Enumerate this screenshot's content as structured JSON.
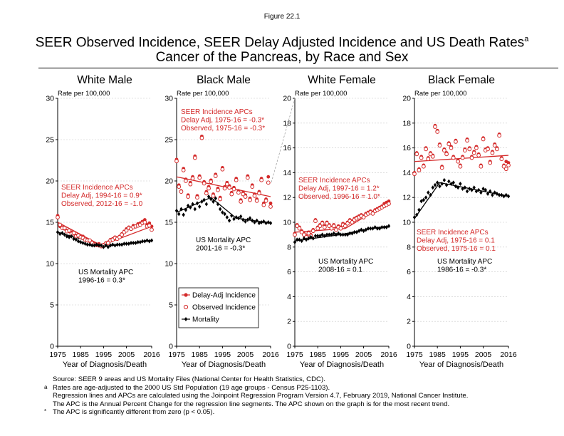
{
  "figure_label": "Figure 22.1",
  "title_line1": "SEER Observed Incidence, SEER Delay Adjusted Incidence and US Death Rates",
  "title_sup": "a",
  "title_line2": "Cancer of the Pancreas, by Race and Sex",
  "colors": {
    "incidence": "#d42a2a",
    "mortality": "#000000",
    "grid": "#c8c8c8"
  },
  "legend": {
    "delay_adj": "Delay-Adj Incidence",
    "observed": "Observed Incidence",
    "mortality": "Mortality"
  },
  "footnotes": [
    {
      "mark": "",
      "text": "Source: SEER 9 areas and US Mortality Files (National Center for Health Statistics, CDC)."
    },
    {
      "mark": "a",
      "text": "Rates are age-adjusted to the 2000 US Std Population (19 age groups - Census P25-1103)."
    },
    {
      "mark": "",
      "text": "Regression lines and APCs are calculated using the Joinpoint Regression Program Version 4.7, February 2019, National Cancer Institute."
    },
    {
      "mark": "",
      "text": "The APC is the Annual Percent Change for the regression line segments. The APC shown on the graph is for the most recent trend."
    },
    {
      "mark": "*",
      "text": "The APC is significantly different from zero (p < 0.05)."
    }
  ],
  "chart_data": [
    {
      "type": "scatter",
      "title": "White Male",
      "ylabel": "Rate per 100,000",
      "xlabel": "Year of Diagnosis/Death",
      "xlim": [
        1975,
        2016
      ],
      "ylim": [
        0,
        30
      ],
      "yticks": [
        0,
        5,
        10,
        15,
        20,
        25,
        30
      ],
      "xticks": [
        1975,
        1985,
        1995,
        2005,
        2016
      ],
      "grid": true,
      "incidence_apc": [
        "SEER Incidence APCs",
        "Delay Adj, 1994-16 = 0.9*",
        "Observed, 2012-16 = -1.0"
      ],
      "mortality_apc": [
        "US Mortality APC",
        "1996-16 = 0.3*"
      ],
      "series": [
        {
          "name": "Delay-Adj Incidence",
          "y": [
            15.8,
            14.5,
            14.4,
            14.2,
            14.0,
            13.9,
            13.8,
            13.6,
            13.4,
            13.5,
            13.2,
            13.3,
            12.9,
            12.9,
            12.7,
            12.6,
            12.4,
            12.2,
            12.4,
            12.1,
            12.3,
            12.5,
            12.6,
            12.9,
            13.0,
            13.2,
            13.1,
            13.3,
            13.6,
            13.9,
            14.2,
            14.4,
            14.3,
            14.6,
            14.5,
            14.8,
            14.9,
            15.1,
            15.3,
            14.7,
            14.9,
            14.5
          ]
        },
        {
          "name": "Observed Incidence",
          "y": [
            15.6,
            14.7,
            14.3,
            14.3,
            13.9,
            14.0,
            13.6,
            13.7,
            13.3,
            13.4,
            13.2,
            13.1,
            12.9,
            12.8,
            12.8,
            12.5,
            12.3,
            12.3,
            12.2,
            12.1,
            12.2,
            12.4,
            12.5,
            12.8,
            12.9,
            13.1,
            13.0,
            13.2,
            13.5,
            13.8,
            14.0,
            14.3,
            14.2,
            14.4,
            14.5,
            14.6,
            14.7,
            14.9,
            15.0,
            14.5,
            14.6,
            14.1
          ]
        },
        {
          "name": "Mortality",
          "y": [
            13.8,
            13.6,
            13.7,
            13.5,
            13.3,
            13.2,
            13.3,
            13.0,
            12.9,
            12.7,
            12.6,
            12.5,
            12.4,
            12.3,
            12.3,
            12.2,
            12.2,
            12.3,
            12.2,
            12.2,
            12.0,
            12.2,
            12.0,
            12.2,
            12.3,
            12.2,
            12.3,
            12.3,
            12.3,
            12.4,
            12.4,
            12.4,
            12.5,
            12.5,
            12.5,
            12.6,
            12.6,
            12.7,
            12.7,
            12.8,
            12.7,
            12.8
          ]
        }
      ],
      "fits": {
        "incidence": [
          [
            1975,
            15.0
          ],
          [
            1994,
            12.2
          ],
          [
            2016,
            14.5
          ]
        ],
        "mortality": [
          [
            1975,
            13.8
          ],
          [
            1996,
            12.1
          ],
          [
            2016,
            12.8
          ]
        ]
      }
    },
    {
      "type": "scatter",
      "title": "Black Male",
      "ylabel": "Rate per 100,000",
      "xlabel": "Year of Diagnosis/Death",
      "xlim": [
        1975,
        2016
      ],
      "ylim": [
        0,
        30
      ],
      "yticks": [
        0,
        5,
        10,
        15,
        20,
        25,
        30
      ],
      "xticks": [
        1975,
        1985,
        1995,
        2005,
        2016
      ],
      "grid": true,
      "incidence_apc": [
        "SEER Incidence APCs",
        "Delay Adj, 1975-16 = -0.3*",
        "Observed, 1975-16 = -0.3*"
      ],
      "mortality_apc": [
        "US Mortality APC",
        "2001-16 = -0.3*"
      ],
      "series": [
        {
          "name": "Delay-Adj Incidence",
          "y": [
            22.6,
            19.5,
            18.8,
            21.5,
            20.2,
            18.3,
            19.8,
            20.5,
            23.0,
            18.2,
            20.6,
            25.4,
            19.9,
            18.7,
            19.3,
            20.1,
            18.4,
            20.8,
            19.1,
            18.0,
            21.6,
            19.3,
            19.8,
            19.4,
            18.6,
            19.2,
            20.3,
            18.8,
            17.7,
            18.6,
            18.3,
            20.6,
            17.9,
            19.5,
            18.4,
            17.8,
            18.7,
            20.3,
            17.3,
            17.8,
            20.5,
            17.3
          ]
        },
        {
          "name": "Observed Incidence",
          "y": [
            22.4,
            19.3,
            18.7,
            21.3,
            20.0,
            18.1,
            19.6,
            20.3,
            22.8,
            18.0,
            20.4,
            25.2,
            19.7,
            18.5,
            19.1,
            19.9,
            18.2,
            20.6,
            18.9,
            17.8,
            21.4,
            19.1,
            19.6,
            19.2,
            18.4,
            19.0,
            20.1,
            18.6,
            17.5,
            18.4,
            18.1,
            20.4,
            17.7,
            19.3,
            18.2,
            17.6,
            18.5,
            20.1,
            17.1,
            17.6,
            19.8,
            16.9
          ]
        },
        {
          "name": "Mortality",
          "y": [
            16.4,
            16.0,
            16.6,
            15.9,
            16.5,
            17.0,
            16.8,
            17.2,
            16.6,
            17.3,
            16.9,
            17.5,
            17.7,
            17.2,
            18.1,
            17.8,
            17.5,
            17.9,
            17.2,
            16.6,
            16.2,
            16.0,
            15.6,
            15.2,
            15.8,
            15.4,
            15.6,
            15.5,
            15.7,
            15.3,
            15.1,
            15.3,
            15.5,
            15.2,
            15.0,
            15.2,
            14.9,
            15.0,
            15.1,
            14.9,
            15.0,
            14.9
          ]
        }
      ],
      "fits": {
        "incidence": [
          [
            1975,
            20.5
          ],
          [
            2016,
            18.1
          ]
        ],
        "mortality": [
          [
            1975,
            16.2
          ],
          [
            1990,
            18.0
          ],
          [
            2001,
            15.5
          ],
          [
            2016,
            14.9
          ]
        ]
      }
    },
    {
      "type": "scatter",
      "title": "White Female",
      "ylabel": "Rate per 100,000",
      "xlabel": "Year of Diagnosis/Death",
      "xlim": [
        1975,
        2016
      ],
      "ylim": [
        0,
        20
      ],
      "yticks": [
        0,
        2,
        4,
        6,
        8,
        10,
        12,
        14,
        16,
        18,
        20
      ],
      "xticks": [
        1975,
        1985,
        1995,
        2005,
        2016
      ],
      "grid": true,
      "incidence_apc": [
        "SEER Incidence APCs",
        "Delay Adj, 1997-16 = 1.2*",
        "Observed, 1996-16 = 1.0*"
      ],
      "mortality_apc": [
        "US Mortality APC",
        "2008-16 = 0.1"
      ],
      "series": [
        {
          "name": "Delay-Adj Incidence",
          "y": [
            9.1,
            9.8,
            9.6,
            9.3,
            9.1,
            8.9,
            9.2,
            9.0,
            9.4,
            10.2,
            9.6,
            9.8,
            10.0,
            9.7,
            10.0,
            9.8,
            9.6,
            9.8,
            9.5,
            9.7,
            9.6,
            9.9,
            9.8,
            10.0,
            10.2,
            10.1,
            10.3,
            10.4,
            10.5,
            10.6,
            10.5,
            10.7,
            10.8,
            10.9,
            10.8,
            11.0,
            11.1,
            11.2,
            11.3,
            11.5,
            11.6,
            11.7
          ]
        },
        {
          "name": "Observed Incidence",
          "y": [
            9.0,
            9.7,
            9.5,
            9.2,
            9.0,
            8.8,
            9.1,
            8.9,
            9.3,
            10.1,
            9.5,
            9.7,
            9.9,
            9.6,
            9.9,
            9.7,
            9.5,
            9.7,
            9.4,
            9.6,
            9.5,
            9.8,
            9.7,
            9.9,
            10.1,
            10.0,
            10.2,
            10.3,
            10.4,
            10.5,
            10.4,
            10.6,
            10.7,
            10.8,
            10.7,
            10.9,
            11.0,
            11.1,
            11.2,
            11.3,
            11.4,
            11.5
          ]
        },
        {
          "name": "Mortality",
          "y": [
            8.4,
            8.6,
            8.6,
            8.5,
            8.7,
            8.6,
            8.7,
            8.8,
            8.7,
            8.9,
            8.9,
            8.9,
            9.0,
            8.9,
            9.0,
            9.0,
            9.0,
            9.1,
            9.0,
            9.1,
            9.0,
            9.0,
            9.0,
            9.0,
            9.1,
            9.1,
            9.2,
            9.2,
            9.3,
            9.4,
            9.3,
            9.4,
            9.5,
            9.5,
            9.5,
            9.6,
            9.5,
            9.5,
            9.6,
            9.6,
            9.6,
            9.7
          ]
        }
      ],
      "fits": {
        "incidence": [
          [
            1975,
            9.2
          ],
          [
            1997,
            9.5
          ],
          [
            2016,
            11.6
          ]
        ],
        "mortality": [
          [
            1975,
            8.5
          ],
          [
            1995,
            9.0
          ],
          [
            2008,
            9.5
          ],
          [
            2016,
            9.7
          ]
        ]
      }
    },
    {
      "type": "scatter",
      "title": "Black Female",
      "ylabel": "Rate per 100,000",
      "xlabel": "Year of Diagnosis/Death",
      "xlim": [
        1975,
        2016
      ],
      "ylim": [
        0,
        20
      ],
      "yticks": [
        0,
        2,
        4,
        6,
        8,
        10,
        12,
        14,
        16,
        18,
        20
      ],
      "xticks": [
        1975,
        1985,
        1995,
        2005,
        2016
      ],
      "grid": true,
      "incidence_apc": [
        "SEER Incidence APCs",
        "Delay Adj, 1975-16 = 0.1",
        "Observed, 1975-16 = 0.1"
      ],
      "mortality_apc": [
        "US Mortality APC",
        "1986-16 = -0.3*"
      ],
      "series": [
        {
          "name": "Delay-Adj Incidence",
          "y": [
            14.0,
            15.6,
            14.3,
            15.3,
            14.6,
            16.0,
            15.2,
            15.6,
            15.4,
            17.8,
            17.4,
            16.3,
            14.5,
            15.9,
            15.6,
            16.4,
            16.1,
            15.3,
            16.6,
            15.0,
            14.6,
            15.3,
            15.9,
            16.7,
            16.0,
            15.3,
            15.7,
            16.1,
            15.5,
            14.6,
            16.8,
            15.9,
            16.0,
            14.9,
            15.7,
            16.3,
            16.0,
            17.1,
            15.2,
            14.6,
            14.9,
            14.8
          ]
        },
        {
          "name": "Observed Incidence",
          "y": [
            13.9,
            15.5,
            14.2,
            15.2,
            14.5,
            15.9,
            15.1,
            15.5,
            15.3,
            17.7,
            17.3,
            16.2,
            14.4,
            15.8,
            15.5,
            16.3,
            16.0,
            15.2,
            16.5,
            14.9,
            14.5,
            15.2,
            15.8,
            16.6,
            15.9,
            15.2,
            15.6,
            16.0,
            15.4,
            14.5,
            16.7,
            15.8,
            15.9,
            14.8,
            15.6,
            16.2,
            15.9,
            17.0,
            15.1,
            14.5,
            14.3,
            14.6
          ]
        },
        {
          "name": "Mortality",
          "y": [
            10.4,
            10.6,
            11.0,
            11.7,
            11.8,
            12.0,
            12.4,
            12.2,
            12.8,
            13.0,
            13.2,
            12.9,
            13.1,
            13.4,
            13.0,
            13.3,
            13.1,
            13.2,
            12.9,
            12.8,
            13.1,
            12.7,
            12.8,
            12.5,
            12.7,
            12.6,
            12.8,
            12.5,
            12.6,
            12.4,
            12.7,
            12.6,
            12.3,
            12.5,
            12.2,
            12.4,
            12.3,
            12.2,
            12.2,
            12.1,
            12.2,
            12.1
          ]
        }
      ],
      "fits": {
        "incidence": [
          [
            1975,
            14.9
          ],
          [
            2016,
            15.4
          ]
        ],
        "mortality": [
          [
            1975,
            10.3
          ],
          [
            1986,
            13.2
          ],
          [
            2016,
            12.1
          ]
        ]
      }
    }
  ]
}
